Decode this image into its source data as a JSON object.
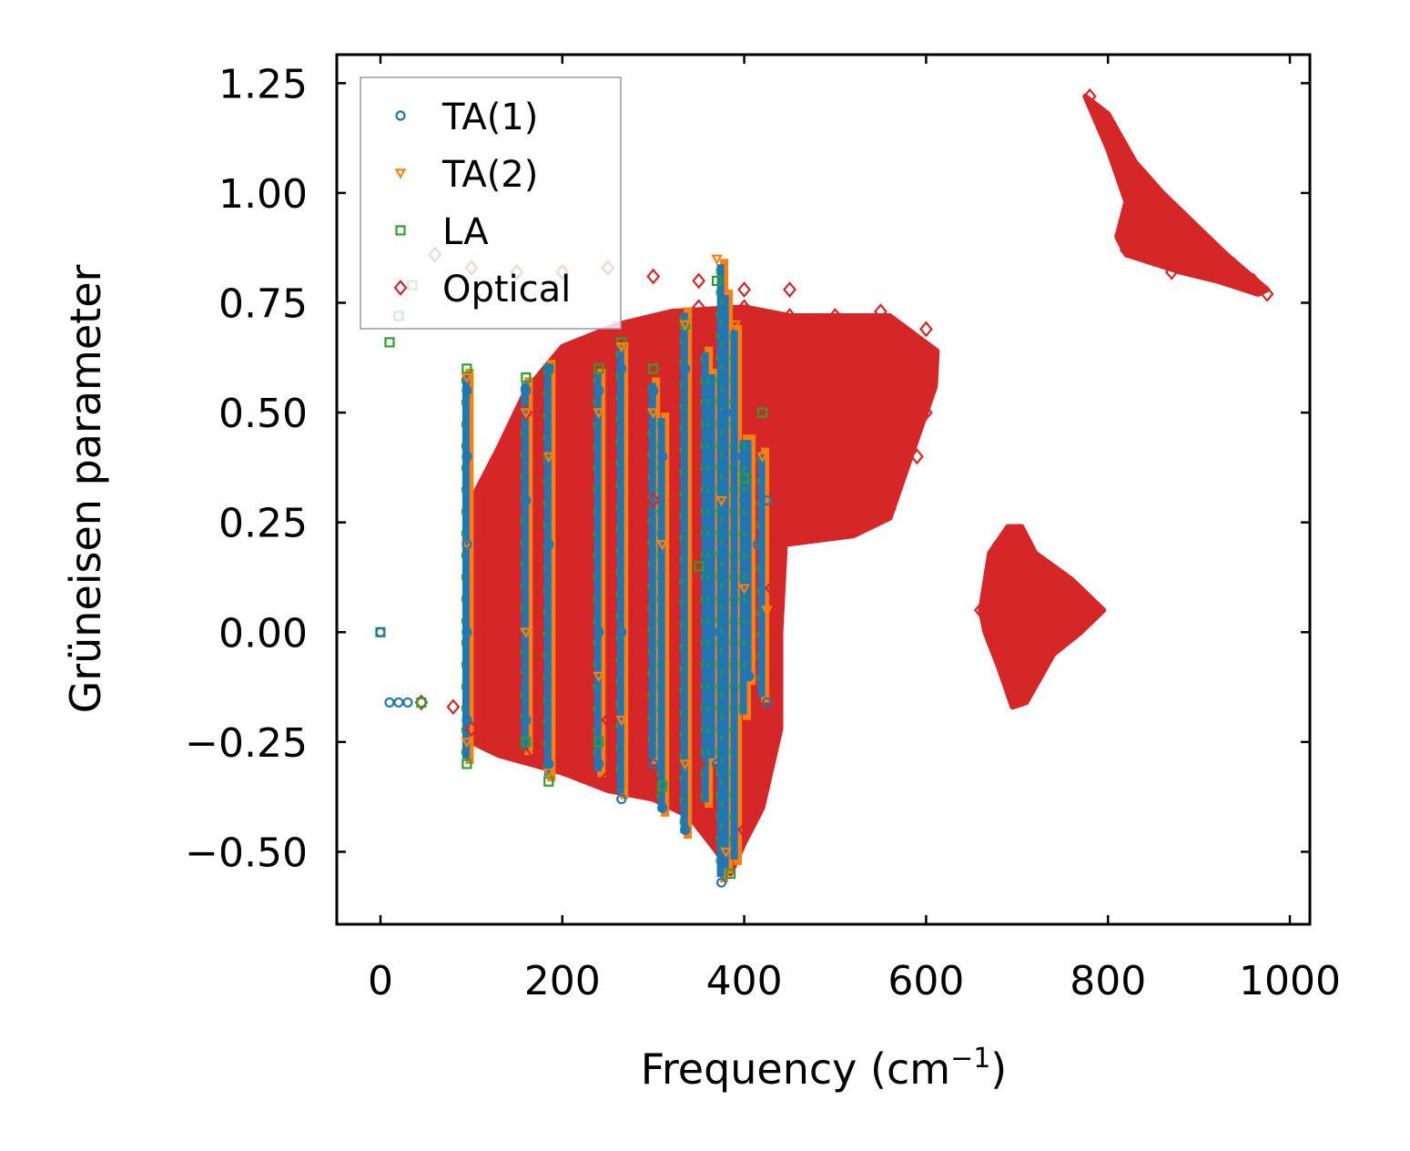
{
  "chart_data": {
    "type": "scatter",
    "title": "",
    "xlabel": "Frequency (cm",
    "xlabel_sup": "−1",
    "xlabel_close": ")",
    "ylabel": "Grüneisen parameter",
    "xlim": [
      -48,
      1022
    ],
    "ylim": [
      -0.665,
      1.315
    ],
    "xticks": [
      0,
      200,
      400,
      600,
      800,
      1000
    ],
    "xtick_labels": [
      "0",
      "200",
      "400",
      "600",
      "800",
      "1000"
    ],
    "yticks": [
      -0.5,
      -0.25,
      0.0,
      0.25,
      0.5,
      0.75,
      1.0,
      1.25
    ],
    "ytick_labels": [
      "−0.50",
      "−0.25",
      "0.00",
      "0.25",
      "0.50",
      "0.75",
      "1.00",
      "1.25"
    ],
    "legend": {
      "position": "top-left"
    },
    "series": [
      {
        "name": "TA(1)",
        "marker": "circle",
        "color": "#1f77b4",
        "points": [
          [
            0,
            0
          ],
          [
            10,
            -0.16
          ],
          [
            20,
            -0.16
          ],
          [
            30,
            -0.16
          ],
          [
            95,
            0.55
          ],
          [
            95,
            0.4
          ],
          [
            95,
            0.2
          ],
          [
            95,
            0.0
          ],
          [
            95,
            -0.2
          ],
          [
            160,
            0.55
          ],
          [
            160,
            0.3
          ],
          [
            160,
            -0.2
          ],
          [
            185,
            0.6
          ],
          [
            185,
            0.2
          ],
          [
            185,
            -0.3
          ],
          [
            240,
            0.55
          ],
          [
            240,
            0.0
          ],
          [
            240,
            -0.3
          ],
          [
            265,
            0.6
          ],
          [
            265,
            0.0
          ],
          [
            265,
            -0.38
          ],
          [
            300,
            0.55
          ],
          [
            300,
            -0.3
          ],
          [
            310,
            0.4
          ],
          [
            310,
            -0.4
          ],
          [
            335,
            0.6
          ],
          [
            335,
            -0.45
          ],
          [
            360,
            0.55
          ],
          [
            365,
            0.0
          ],
          [
            370,
            -0.3
          ],
          [
            375,
            -0.57
          ],
          [
            380,
            0.5
          ],
          [
            390,
            0.4
          ],
          [
            400,
            0.3
          ],
          [
            405,
            -0.1
          ],
          [
            415,
            0.2
          ],
          [
            425,
            0.3
          ],
          [
            425,
            -0.16
          ]
        ]
      },
      {
        "name": "TA(2)",
        "marker": "triangle",
        "color": "#ff7f0e",
        "points": [
          [
            95,
            0.58
          ],
          [
            95,
            0.2
          ],
          [
            95,
            -0.25
          ],
          [
            160,
            0.5
          ],
          [
            160,
            0.0
          ],
          [
            185,
            0.4
          ],
          [
            185,
            -0.32
          ],
          [
            240,
            0.5
          ],
          [
            240,
            -0.1
          ],
          [
            265,
            0.65
          ],
          [
            265,
            -0.2
          ],
          [
            300,
            0.5
          ],
          [
            310,
            0.2
          ],
          [
            335,
            0.7
          ],
          [
            335,
            -0.3
          ],
          [
            370,
            0.85
          ],
          [
            375,
            0.3
          ],
          [
            380,
            -0.5
          ],
          [
            390,
            0.7
          ],
          [
            400,
            0.1
          ],
          [
            420,
            0.4
          ],
          [
            425,
            0.05
          ]
        ]
      },
      {
        "name": "LA",
        "marker": "square",
        "color": "#2ca02c",
        "points": [
          [
            0,
            0
          ],
          [
            10,
            0.66
          ],
          [
            20,
            0.72
          ],
          [
            35,
            0.79
          ],
          [
            45,
            -0.16
          ],
          [
            95,
            0.6
          ],
          [
            95,
            -0.3
          ],
          [
            160,
            0.58
          ],
          [
            160,
            -0.25
          ],
          [
            185,
            0.6
          ],
          [
            185,
            -0.34
          ],
          [
            240,
            0.6
          ],
          [
            240,
            -0.25
          ],
          [
            265,
            0.66
          ],
          [
            300,
            0.6
          ],
          [
            310,
            -0.35
          ],
          [
            335,
            0.7
          ],
          [
            350,
            0.15
          ],
          [
            370,
            0.8
          ],
          [
            385,
            -0.55
          ],
          [
            400,
            0.35
          ],
          [
            420,
            0.5
          ]
        ]
      },
      {
        "name": "Optical",
        "marker": "diamond",
        "color": "#d62728",
        "points": [
          [
            45,
            -0.16
          ],
          [
            80,
            -0.17
          ],
          [
            100,
            -0.22
          ],
          [
            130,
            -0.25
          ],
          [
            160,
            -0.28
          ],
          [
            200,
            -0.31
          ],
          [
            250,
            -0.33
          ],
          [
            300,
            -0.36
          ],
          [
            60,
            0.86
          ],
          [
            100,
            0.83
          ],
          [
            150,
            0.82
          ],
          [
            200,
            0.82
          ],
          [
            250,
            0.83
          ],
          [
            300,
            0.81
          ],
          [
            350,
            0.8
          ],
          [
            400,
            0.78
          ],
          [
            450,
            0.78
          ],
          [
            130,
            0.3
          ],
          [
            160,
            0.5
          ],
          [
            200,
            0.6
          ],
          [
            250,
            0.65
          ],
          [
            300,
            0.7
          ],
          [
            350,
            0.74
          ],
          [
            400,
            0.74
          ],
          [
            450,
            0.72
          ],
          [
            500,
            0.72
          ],
          [
            550,
            0.73
          ],
          [
            600,
            0.69
          ],
          [
            450,
            0.65
          ],
          [
            500,
            0.6
          ],
          [
            550,
            0.6
          ],
          [
            600,
            0.6
          ],
          [
            450,
            0.5
          ],
          [
            500,
            0.5
          ],
          [
            550,
            0.5
          ],
          [
            600,
            0.5
          ],
          [
            450,
            0.35
          ],
          [
            500,
            0.4
          ],
          [
            550,
            0.35
          ],
          [
            590,
            0.4
          ],
          [
            440,
            0.2
          ],
          [
            480,
            0.22
          ],
          [
            520,
            0.24
          ],
          [
            560,
            0.28
          ],
          [
            120,
            0.0
          ],
          [
            150,
            -0.1
          ],
          [
            200,
            0.2
          ],
          [
            250,
            -0.2
          ],
          [
            300,
            0.3
          ],
          [
            350,
            -0.3
          ],
          [
            400,
            -0.45
          ],
          [
            420,
            -0.2
          ],
          [
            430,
            0.1
          ],
          [
            660,
            0.05
          ],
          [
            680,
            0.2
          ],
          [
            700,
            0.22
          ],
          [
            700,
            -0.15
          ],
          [
            720,
            -0.05
          ],
          [
            740,
            0.12
          ],
          [
            760,
            0.05
          ],
          [
            790,
            0.05
          ],
          [
            780,
            1.22
          ],
          [
            800,
            1.15
          ],
          [
            820,
            1.05
          ],
          [
            840,
            1.0
          ],
          [
            860,
            0.95
          ],
          [
            880,
            0.9
          ],
          [
            900,
            0.85
          ],
          [
            930,
            0.83
          ],
          [
            960,
            0.8
          ],
          [
            975,
            0.77
          ],
          [
            850,
            0.85
          ],
          [
            870,
            0.82
          ],
          [
            820,
            0.87
          ]
        ]
      }
    ],
    "filled_regions": [
      {
        "name": "optical-main-cloud",
        "color": "#d62728",
        "polygon": [
          [
            100,
            -0.25
          ],
          [
            130,
            -0.28
          ],
          [
            200,
            -0.32
          ],
          [
            250,
            -0.36
          ],
          [
            300,
            -0.38
          ],
          [
            340,
            -0.42
          ],
          [
            370,
            -0.5
          ],
          [
            385,
            -0.55
          ],
          [
            400,
            -0.48
          ],
          [
            420,
            -0.4
          ],
          [
            440,
            -0.22
          ],
          [
            440,
            0.0
          ],
          [
            445,
            0.2
          ],
          [
            520,
            0.22
          ],
          [
            560,
            0.26
          ],
          [
            590,
            0.44
          ],
          [
            610,
            0.56
          ],
          [
            612,
            0.64
          ],
          [
            560,
            0.72
          ],
          [
            500,
            0.72
          ],
          [
            450,
            0.72
          ],
          [
            400,
            0.74
          ],
          [
            320,
            0.73
          ],
          [
            260,
            0.7
          ],
          [
            200,
            0.65
          ],
          [
            160,
            0.55
          ],
          [
            130,
            0.42
          ],
          [
            100,
            0.3
          ],
          [
            100,
            0.0
          ]
        ]
      },
      {
        "name": "optical-triangle-cloud",
        "color": "#d62728",
        "polygon": [
          [
            660,
            0.05
          ],
          [
            670,
            0.18
          ],
          [
            690,
            0.24
          ],
          [
            705,
            0.24
          ],
          [
            720,
            0.18
          ],
          [
            760,
            0.12
          ],
          [
            795,
            0.05
          ],
          [
            770,
            0.0
          ],
          [
            740,
            -0.05
          ],
          [
            710,
            -0.16
          ],
          [
            695,
            -0.17
          ],
          [
            680,
            -0.08
          ],
          [
            665,
            0.0
          ]
        ]
      },
      {
        "name": "optical-high-cloud",
        "color": "#d62728",
        "polygon": [
          [
            775,
            1.22
          ],
          [
            800,
            1.18
          ],
          [
            830,
            1.07
          ],
          [
            860,
            1.0
          ],
          [
            890,
            0.94
          ],
          [
            930,
            0.86
          ],
          [
            975,
            0.78
          ],
          [
            965,
            0.77
          ],
          [
            920,
            0.8
          ],
          [
            880,
            0.82
          ],
          [
            850,
            0.84
          ],
          [
            820,
            0.86
          ],
          [
            810,
            0.9
          ],
          [
            820,
            0.98
          ],
          [
            800,
            1.1
          ]
        ]
      }
    ],
    "vertical_bands": [
      {
        "x": 95,
        "y": [
          -0.3,
          0.6
        ]
      },
      {
        "x": 160,
        "y": [
          -0.28,
          0.58
        ]
      },
      {
        "x": 185,
        "y": [
          -0.34,
          0.62
        ]
      },
      {
        "x": 240,
        "y": [
          -0.33,
          0.6
        ]
      },
      {
        "x": 265,
        "y": [
          -0.38,
          0.66
        ]
      },
      {
        "x": 300,
        "y": [
          -0.3,
          0.58
        ]
      },
      {
        "x": 310,
        "y": [
          -0.42,
          0.5
        ]
      },
      {
        "x": 335,
        "y": [
          -0.47,
          0.74
        ]
      },
      {
        "x": 358,
        "y": [
          -0.4,
          0.65
        ]
      },
      {
        "x": 365,
        "y": [
          -0.3,
          0.6
        ]
      },
      {
        "x": 375,
        "y": [
          -0.57,
          0.85
        ]
      },
      {
        "x": 380,
        "y": [
          -0.55,
          0.78
        ]
      },
      {
        "x": 390,
        "y": [
          -0.53,
          0.7
        ]
      },
      {
        "x": 400,
        "y": [
          -0.2,
          0.45
        ]
      },
      {
        "x": 405,
        "y": [
          -0.12,
          0.45
        ]
      },
      {
        "x": 420,
        "y": [
          -0.16,
          0.42
        ]
      }
    ]
  }
}
